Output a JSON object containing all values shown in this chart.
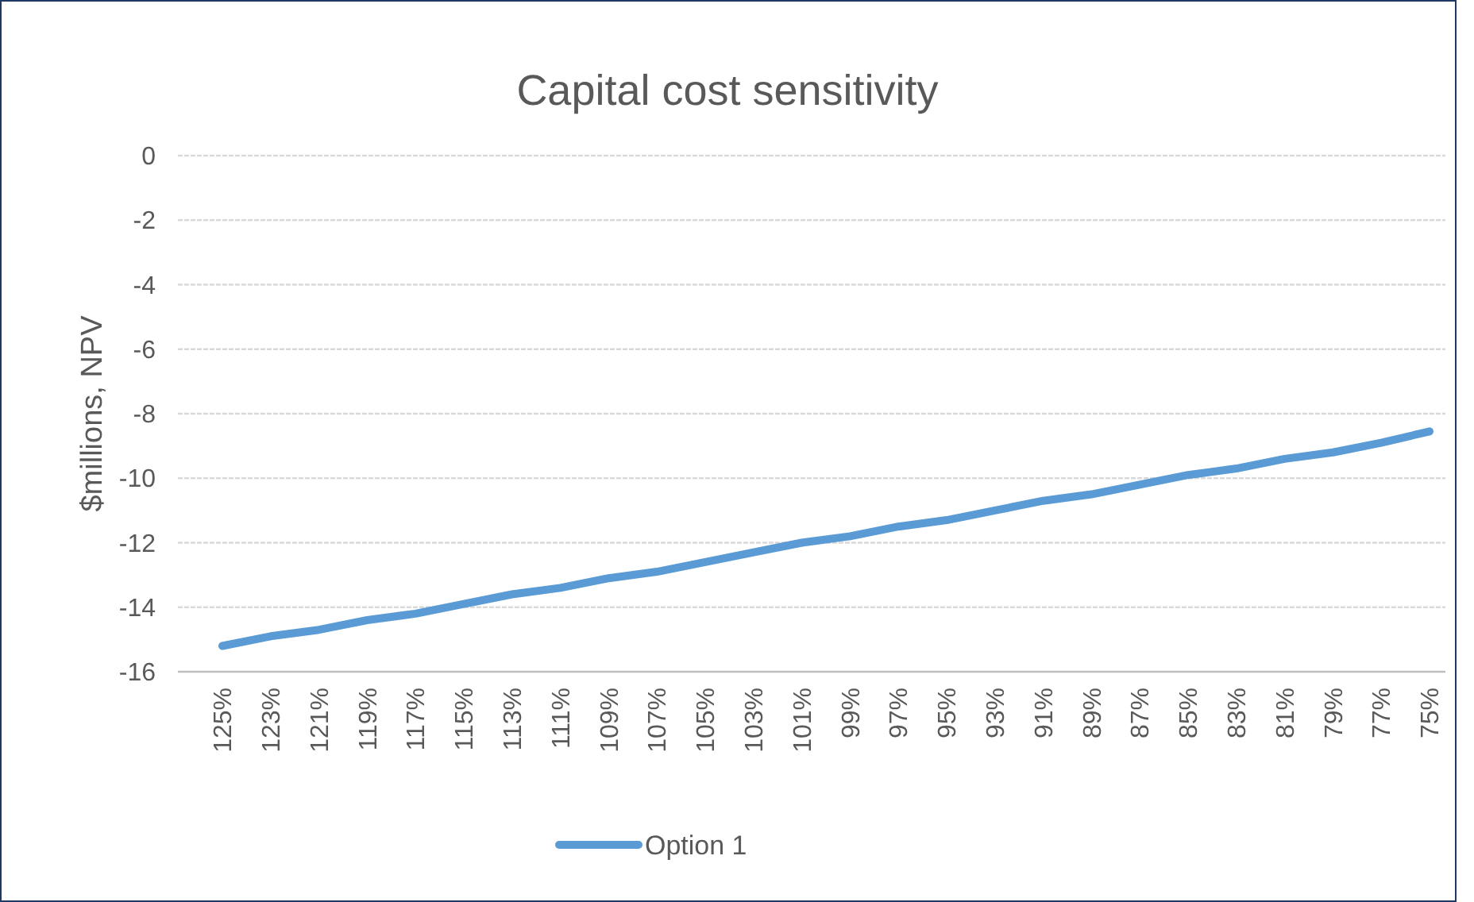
{
  "chart_data": {
    "type": "line",
    "title": "Capital cost sensitivity",
    "ylabel": "$millions, NPV",
    "categories": [
      "125%",
      "123%",
      "121%",
      "119%",
      "117%",
      "115%",
      "113%",
      "111%",
      "109%",
      "107%",
      "105%",
      "103%",
      "101%",
      "99%",
      "97%",
      "95%",
      "93%",
      "91%",
      "89%",
      "87%",
      "85%",
      "83%",
      "81%",
      "79%",
      "77%",
      "75%"
    ],
    "series": [
      {
        "name": "Option 1",
        "color": "#5b9bd5",
        "values": [
          -15.2,
          -14.9,
          -14.7,
          -14.4,
          -14.2,
          -13.9,
          -13.6,
          -13.4,
          -13.1,
          -12.9,
          -12.6,
          -12.3,
          -12.0,
          -11.8,
          -11.5,
          -11.3,
          -11.0,
          -10.7,
          -10.5,
          -10.2,
          -9.9,
          -9.7,
          -9.4,
          -9.2,
          -8.9,
          -8.55
        ]
      }
    ],
    "ylim": [
      -16,
      0
    ],
    "yticks": [
      -16,
      -14,
      -12,
      -10,
      -8,
      -6,
      -4,
      -2,
      0
    ],
    "grid": "y",
    "legend": "bottom",
    "marker": "none",
    "line_style": "solid"
  }
}
